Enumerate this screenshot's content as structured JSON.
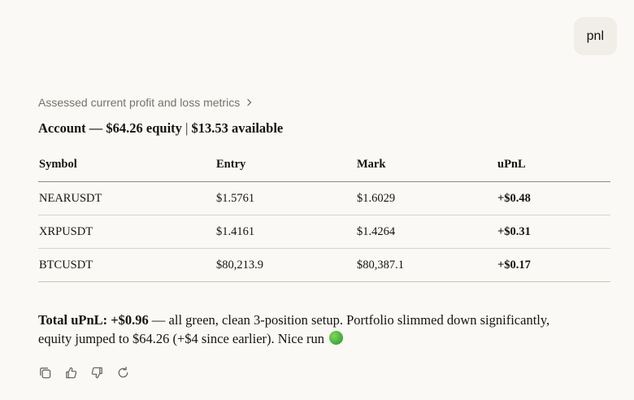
{
  "user_message": {
    "text": "pnl"
  },
  "assistant": {
    "thought_summary": "Assessed current profit and loss metrics",
    "account": {
      "label": "Account",
      "dash": "—",
      "equity": "$64.26 equity",
      "separator": "|",
      "available": "$13.53 available"
    },
    "table": {
      "headers": [
        "Symbol",
        "Entry",
        "Mark",
        "uPnL"
      ],
      "rows": [
        {
          "symbol": "NEARUSDT",
          "entry": "$1.5761",
          "mark": "$1.6029",
          "upnl": "+$0.48"
        },
        {
          "symbol": "XRPUSDT",
          "entry": "$1.4161",
          "mark": "$1.4264",
          "upnl": "+$0.31"
        },
        {
          "symbol": "BTCUSDT",
          "entry": "$80,213.9",
          "mark": "$80,387.1",
          "upnl": "+$0.17"
        }
      ]
    },
    "summary": {
      "bold": "Total uPnL: +$0.96",
      "text": " — all green, clean 3-position setup. Portfolio slimmed down significantly, equity jumped to $64.26 (+$4 since earlier). Nice run "
    },
    "actions": [
      "copy-icon",
      "thumbs-up-icon",
      "thumbs-down-icon",
      "retry-icon"
    ]
  },
  "colors": {
    "background": "#faf9f5",
    "user_bubble": "#f0eee6",
    "muted_text": "#73726c",
    "green_emoji": "#3fa83a"
  }
}
